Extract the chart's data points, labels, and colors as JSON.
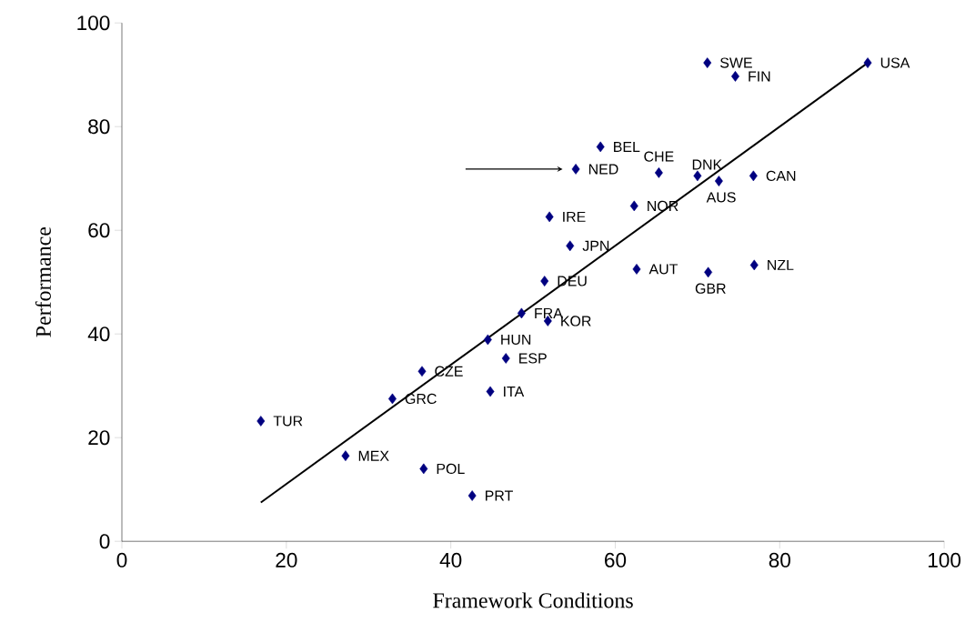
{
  "chart_data": {
    "type": "scatter",
    "xlabel": "Framework Conditions",
    "ylabel": "Performance",
    "xlim": [
      0,
      100
    ],
    "ylim": [
      0,
      100
    ],
    "xticks": [
      0,
      20,
      40,
      60,
      80,
      100
    ],
    "yticks": [
      0,
      20,
      40,
      60,
      80,
      100
    ],
    "marker": "diamond",
    "series": [
      {
        "color": "#000080",
        "x": [
          90.7,
          71.2,
          74.6,
          58.2,
          65.3,
          55.2,
          70.0,
          72.6,
          76.8,
          62.3,
          52.0,
          54.5,
          62.6,
          71.3,
          76.9,
          51.4,
          48.6,
          51.8,
          44.5,
          46.7,
          36.5,
          44.8,
          32.9,
          16.9,
          27.2,
          36.7,
          42.6
        ],
        "values": [
          92.3,
          92.3,
          89.7,
          76.1,
          71.1,
          71.8,
          70.5,
          69.5,
          70.5,
          64.7,
          62.6,
          57.0,
          52.5,
          51.9,
          53.3,
          50.2,
          44.0,
          42.5,
          38.9,
          35.3,
          32.8,
          28.9,
          27.5,
          23.2,
          16.5,
          14.0,
          8.8
        ]
      },
      {
        "type": "line",
        "color": "#000000",
        "marker": "none",
        "x": [
          16.9,
          90.7
        ],
        "values": [
          7.5,
          92.3
        ]
      }
    ],
    "annotations": [
      {
        "text": "USA",
        "x": 90.7,
        "y": 92.3
      },
      {
        "text": "SWE",
        "x": 71.2,
        "y": 92.3
      },
      {
        "text": "FIN",
        "x": 74.6,
        "y": 89.7
      },
      {
        "text": "BEL",
        "x": 58.2,
        "y": 76.1
      },
      {
        "text": "CHE",
        "x": 65.3,
        "y": 71.1
      },
      {
        "text": "NED",
        "x": 55.2,
        "y": 71.8
      },
      {
        "text": "DNK",
        "x": 70.0,
        "y": 70.5
      },
      {
        "text": "AUS",
        "x": 72.6,
        "y": 69.5
      },
      {
        "text": "CAN",
        "x": 76.8,
        "y": 70.5
      },
      {
        "text": "NOR",
        "x": 62.3,
        "y": 64.7
      },
      {
        "text": "IRE",
        "x": 52.0,
        "y": 62.6
      },
      {
        "text": "JPN",
        "x": 54.5,
        "y": 57.0
      },
      {
        "text": "AUT",
        "x": 62.6,
        "y": 52.5
      },
      {
        "text": "GBR",
        "x": 71.3,
        "y": 51.9
      },
      {
        "text": "NZL",
        "x": 76.9,
        "y": 53.3
      },
      {
        "text": "DEU",
        "x": 51.4,
        "y": 50.2
      },
      {
        "text": "FRA",
        "x": 48.6,
        "y": 44.0
      },
      {
        "text": "KOR",
        "x": 51.8,
        "y": 42.5
      },
      {
        "text": "HUN",
        "x": 44.5,
        "y": 38.9
      },
      {
        "text": "ESP",
        "x": 46.7,
        "y": 35.3
      },
      {
        "text": "CZE",
        "x": 36.5,
        "y": 32.8
      },
      {
        "text": "ITA",
        "x": 44.8,
        "y": 28.9
      },
      {
        "text": "GRC",
        "x": 32.9,
        "y": 27.5
      },
      {
        "text": "TUR",
        "x": 16.9,
        "y": 23.2
      },
      {
        "text": "MEX",
        "x": 27.2,
        "y": 16.5
      },
      {
        "text": "POL",
        "x": 36.7,
        "y": 14.0
      },
      {
        "text": "PRT",
        "x": 42.6,
        "y": 8.8
      }
    ]
  }
}
